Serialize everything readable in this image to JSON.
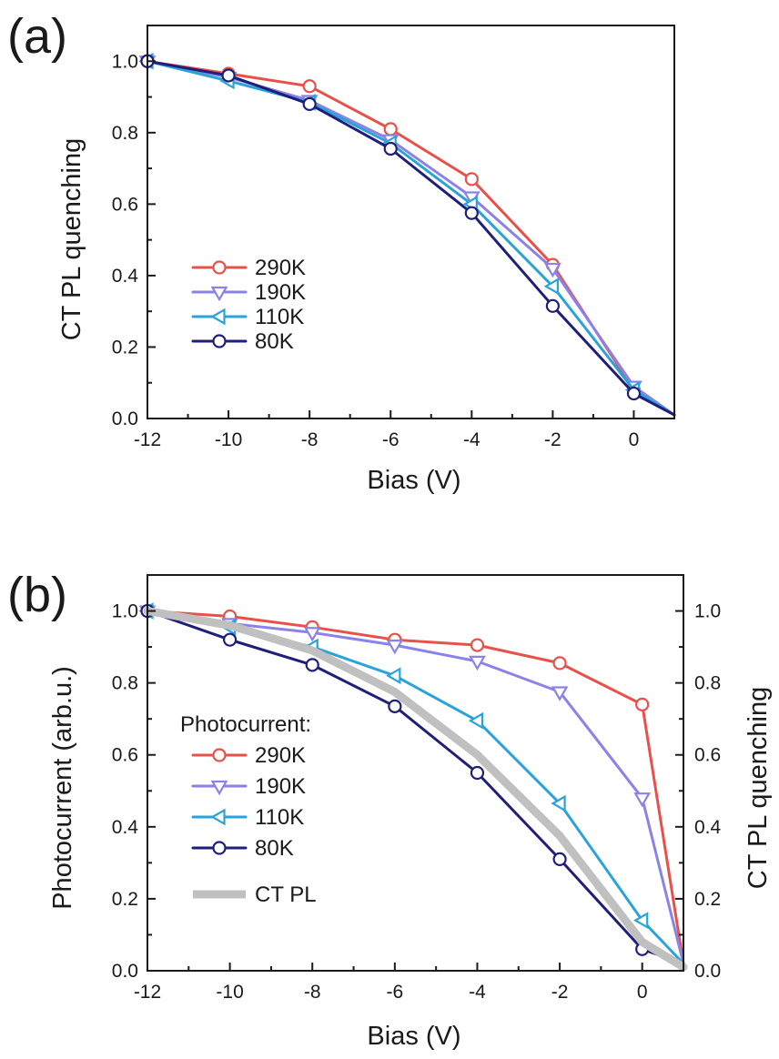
{
  "chart_data": [
    {
      "panel_label": "(a)",
      "type": "line",
      "xlabel": "Bias (V)",
      "ylabel": "CT PL quenching",
      "xlim": [
        -12,
        1
      ],
      "ylim": [
        0,
        1.1
      ],
      "xticks": [
        "-12",
        "-10",
        "-8",
        "-6",
        "-4",
        "-2",
        "0"
      ],
      "yticks": [
        "0.0",
        "0.2",
        "0.4",
        "0.6",
        "0.8",
        "1.0"
      ],
      "grid": false,
      "legend_position": "center-left",
      "legend_title": "",
      "series": [
        {
          "name": "290K",
          "color": "#e8514a",
          "marker": "circle",
          "x": [
            -12,
            -10,
            -8,
            -6,
            -4,
            -2,
            0,
            1
          ],
          "y": [
            1.0,
            0.965,
            0.93,
            0.81,
            0.67,
            0.43,
            0.08,
            0.01
          ]
        },
        {
          "name": "190K",
          "color": "#8a82e8",
          "marker": "triangle-down",
          "x": [
            -12,
            -10,
            -8,
            -6,
            -4,
            -2,
            0,
            1
          ],
          "y": [
            1.0,
            0.955,
            0.89,
            0.78,
            0.62,
            0.42,
            0.09,
            0.01
          ]
        },
        {
          "name": "110K",
          "color": "#2aa3d9",
          "marker": "triangle-left",
          "x": [
            -12,
            -10,
            -8,
            -6,
            -4,
            -2,
            0,
            1
          ],
          "y": [
            1.0,
            0.945,
            0.885,
            0.77,
            0.6,
            0.37,
            0.08,
            0.01
          ]
        },
        {
          "name": "80K",
          "color": "#1f1f7a",
          "marker": "circle",
          "x": [
            -12,
            -10,
            -8,
            -6,
            -4,
            -2,
            0,
            1
          ],
          "y": [
            1.0,
            0.96,
            0.88,
            0.755,
            0.575,
            0.315,
            0.07,
            0.01
          ]
        }
      ]
    },
    {
      "panel_label": "(b)",
      "type": "line",
      "xlabel": "Bias (V)",
      "ylabel": "Photocurrent (arb.u.)",
      "ylabel_right": "CT PL quenching",
      "xlim": [
        -12,
        1
      ],
      "ylim": [
        0,
        1.1
      ],
      "xticks": [
        "-12",
        "-10",
        "-8",
        "-6",
        "-4",
        "-2",
        "0"
      ],
      "yticks": [
        "0.0",
        "0.2",
        "0.4",
        "0.6",
        "0.8",
        "1.0"
      ],
      "yticks_right": [
        "0.0",
        "0.2",
        "0.4",
        "0.6",
        "0.8",
        "1.0"
      ],
      "grid": false,
      "legend_position": "center-left",
      "legend_title": "Photocurrent:",
      "series": [
        {
          "name": "290K",
          "color": "#e8514a",
          "marker": "circle",
          "x": [
            -12,
            -10,
            -8,
            -6,
            -4,
            -2,
            0,
            1
          ],
          "y": [
            1.0,
            0.985,
            0.955,
            0.92,
            0.905,
            0.855,
            0.74,
            0.02
          ]
        },
        {
          "name": "190K",
          "color": "#8a82e8",
          "marker": "triangle-down",
          "x": [
            -12,
            -10,
            -8,
            -6,
            -4,
            -2,
            0,
            1
          ],
          "y": [
            1.0,
            0.965,
            0.94,
            0.905,
            0.86,
            0.775,
            0.48,
            0.02
          ]
        },
        {
          "name": "110K",
          "color": "#2aa3d9",
          "marker": "triangle-left",
          "x": [
            -12,
            -10,
            -8,
            -6,
            -4,
            -2,
            0,
            1
          ],
          "y": [
            1.0,
            0.955,
            0.9,
            0.82,
            0.695,
            0.465,
            0.14,
            0.02
          ]
        },
        {
          "name": "80K",
          "color": "#1f1f7a",
          "marker": "circle",
          "x": [
            -12,
            -10,
            -8,
            -6,
            -4,
            -2,
            0,
            1
          ],
          "y": [
            1.0,
            0.92,
            0.85,
            0.735,
            0.55,
            0.31,
            0.06,
            0.02
          ]
        },
        {
          "name": "CT PL",
          "color": "#c0c0c0",
          "marker": "none",
          "thick": true,
          "x": [
            -12,
            -10,
            -8,
            -6,
            -4,
            -2,
            0,
            1
          ],
          "y": [
            1.0,
            0.96,
            0.89,
            0.775,
            0.6,
            0.375,
            0.08,
            0.01
          ]
        }
      ]
    }
  ]
}
